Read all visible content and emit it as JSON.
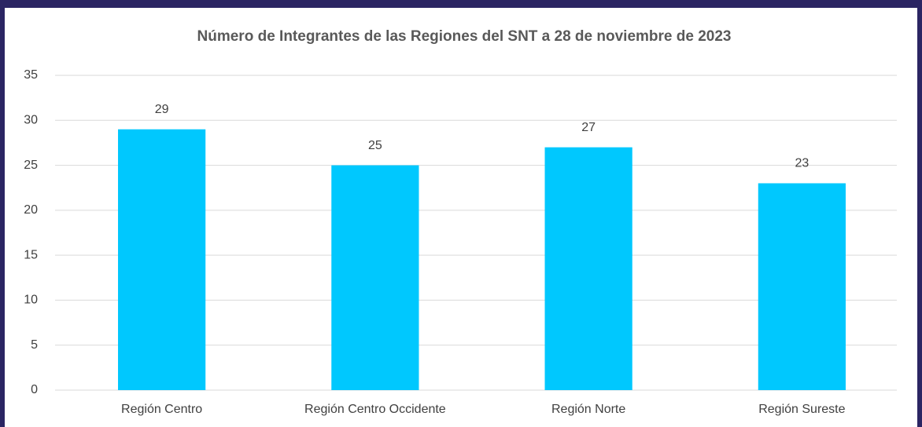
{
  "chart_data": {
    "type": "bar",
    "title": "Número de Integrantes de las Regiones del SNT a 28 de noviembre de 2023",
    "categories": [
      "Región Centro",
      "Región Centro Occidente",
      "Región Norte",
      "Región Sureste"
    ],
    "values": [
      29,
      25,
      27,
      23
    ],
    "color": "#00c8fe",
    "ylim": [
      0,
      35
    ],
    "yticks": [
      0,
      5,
      10,
      15,
      20,
      25,
      30,
      35
    ],
    "grid": true
  }
}
